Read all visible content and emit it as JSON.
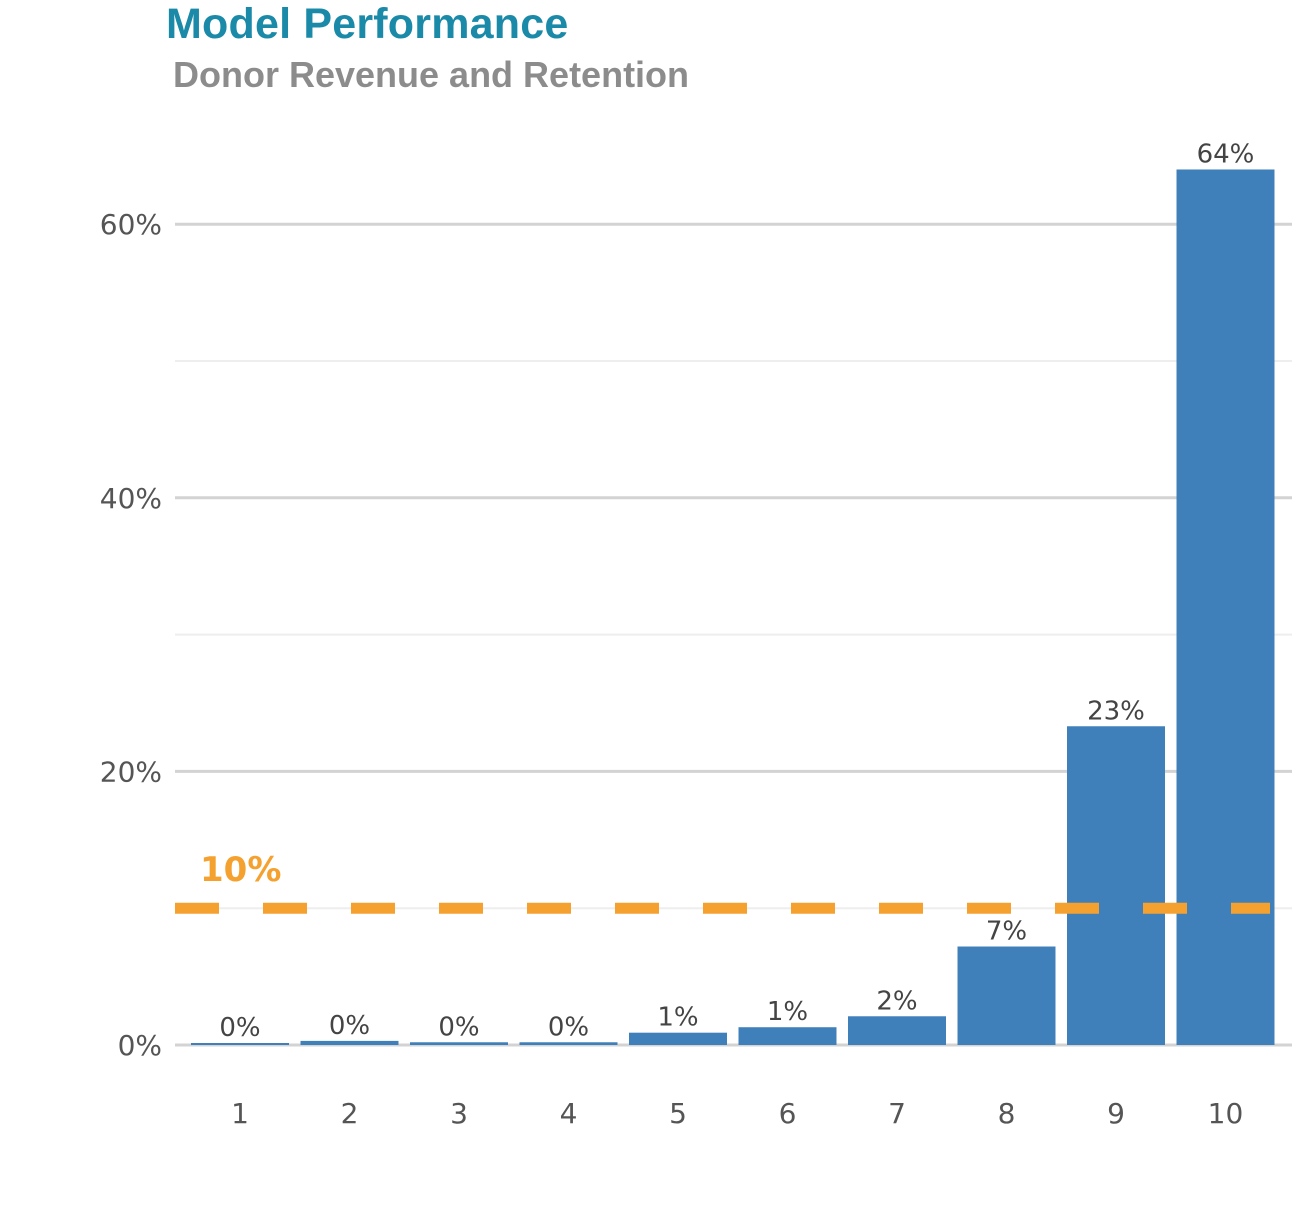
{
  "header": {
    "title": "Model Performance",
    "subtitle": "Donor Revenue and Retention"
  },
  "colors": {
    "title": "#1a8aa8",
    "subtitle": "#8c8c8c",
    "bar": "#4080ba",
    "reference_line": "#f5a130",
    "grid": "#d3d3d3"
  },
  "chart_data": {
    "type": "bar",
    "title": "Model Performance",
    "subtitle": "Donor Revenue and Retention",
    "categories": [
      "1",
      "2",
      "3",
      "4",
      "5",
      "6",
      "7",
      "8",
      "9",
      "10"
    ],
    "values": [
      0.1,
      0.3,
      0.2,
      0.2,
      0.9,
      1.3,
      2.1,
      7.2,
      23.3,
      64.0
    ],
    "data_labels": [
      "0%",
      "0%",
      "0%",
      "0%",
      "1%",
      "1%",
      "2%",
      "7%",
      "23%",
      "64%"
    ],
    "ylim": [
      0,
      70
    ],
    "yticks": [
      0,
      20,
      40,
      60
    ],
    "ytick_labels": [
      "0%",
      "20%",
      "40%",
      "60%"
    ],
    "grid": true,
    "reference_line": {
      "value": 10,
      "label": "10%",
      "style": "dashed"
    }
  }
}
